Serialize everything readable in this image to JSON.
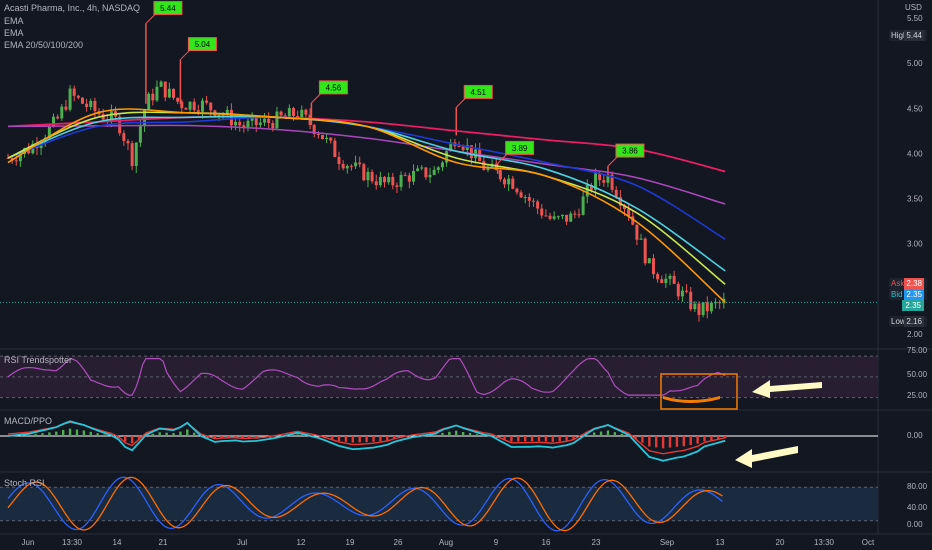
{
  "header": {
    "symbol": "Acasti Pharma, Inc., 4h, NASDAQ",
    "ind1": "EMA",
    "ind2": "EMA",
    "ind3": "EMA 20/50/100/200"
  },
  "currency": "USD",
  "price_axis_labels": [
    "5.50",
    "5.00",
    "4.50",
    "4.00",
    "3.50",
    "3.00",
    "2.50",
    "2.00"
  ],
  "price_tags": {
    "high": {
      "k": "High",
      "v": "5.44"
    },
    "ask": {
      "k": "Ask",
      "v": "2.38"
    },
    "bid": {
      "k": "Bid",
      "v": "2.35"
    },
    "last": {
      "v": "2.35"
    },
    "low": {
      "k": "Low",
      "v": "2.16"
    }
  },
  "panes": {
    "rsi": {
      "title": "RSI Trendspotter",
      "ticks": [
        "75.00",
        "50.00",
        "25.00"
      ]
    },
    "macd": {
      "title": "MACD/PPO",
      "ticks": [
        "0.00"
      ]
    },
    "stoch": {
      "title": "Stoch RSI",
      "ticks": [
        "80.00",
        "40.00",
        "0.00"
      ]
    }
  },
  "time_axis_labels": [
    "Jun",
    "13:30",
    "14",
    "21",
    "Jul",
    "12",
    "19",
    "26",
    "Aug",
    "9",
    "16",
    "23",
    "Sep",
    "13",
    "20",
    "13:30",
    "Oct"
  ],
  "chart_data": {
    "type": "candlestick",
    "title": "Acasti Pharma, Inc., 4h, NASDAQ",
    "y_axis_range": [
      1.9,
      5.7
    ],
    "last_price": 2.35,
    "high": 5.44,
    "low": 2.16,
    "annotations": [
      {
        "label": "5.44",
        "date": "Jun 21"
      },
      {
        "label": "5.04",
        "date": "Jun 26"
      },
      {
        "label": "4.56",
        "date": "Jul 15"
      },
      {
        "label": "4.51",
        "date": "Aug 5"
      },
      {
        "label": "3.89",
        "date": "Aug 11"
      },
      {
        "label": "3.86",
        "date": "Aug 27"
      }
    ],
    "price_path": [
      {
        "date": "Jun 1",
        "price": 3.95
      },
      {
        "date": "Jun 4",
        "price": 4.05
      },
      {
        "date": "Jun 8",
        "price": 4.35
      },
      {
        "date": "Jun 10",
        "price": 4.65
      },
      {
        "date": "Jun 14",
        "price": 4.45
      },
      {
        "date": "Jun 17",
        "price": 4.35
      },
      {
        "date": "Jun 19",
        "price": 3.95
      },
      {
        "date": "Jun 21",
        "price": 4.55
      },
      {
        "date": "Jun 23",
        "price": 4.75
      },
      {
        "date": "Jun 26",
        "price": 4.55
      },
      {
        "date": "Jun 29",
        "price": 4.55
      },
      {
        "date": "Jul 2",
        "price": 4.45
      },
      {
        "date": "Jul 5",
        "price": 4.3
      },
      {
        "date": "Jul 9",
        "price": 4.35
      },
      {
        "date": "Jul 13",
        "price": 4.45
      },
      {
        "date": "Jul 16",
        "price": 4.25
      },
      {
        "date": "Jul 19",
        "price": 3.95
      },
      {
        "date": "Jul 22",
        "price": 3.8
      },
      {
        "date": "Jul 26",
        "price": 3.65
      },
      {
        "date": "Jul 29",
        "price": 3.75
      },
      {
        "date": "Aug 2",
        "price": 3.8
      },
      {
        "date": "Aug 5",
        "price": 4.2
      },
      {
        "date": "Aug 9",
        "price": 3.85
      },
      {
        "date": "Aug 13",
        "price": 3.7
      },
      {
        "date": "Aug 16",
        "price": 3.45
      },
      {
        "date": "Aug 19",
        "price": 3.25
      },
      {
        "date": "Aug 22",
        "price": 3.3
      },
      {
        "date": "Aug 25",
        "price": 3.7
      },
      {
        "date": "Aug 27",
        "price": 3.75
      },
      {
        "date": "Aug 30",
        "price": 3.35
      },
      {
        "date": "Sep 2",
        "price": 2.75
      },
      {
        "date": "Sep 6",
        "price": 2.5
      },
      {
        "date": "Sep 9",
        "price": 2.25
      },
      {
        "date": "Sep 13",
        "price": 2.35
      }
    ],
    "series": [
      {
        "values": [
          3.9,
          4.45,
          4.45,
          4.4,
          4.3,
          3.9,
          3.75,
          3.25,
          2.35
        ]
      },
      {
        "values": [
          3.95,
          4.4,
          4.45,
          4.4,
          4.3,
          3.95,
          3.75,
          3.35,
          2.55
        ]
      },
      {
        "values": [
          3.95,
          4.3,
          4.35,
          4.4,
          4.3,
          4.1,
          3.9,
          3.65,
          3.05
        ]
      },
      {
        "values": [
          4.3,
          4.35,
          4.4,
          4.4,
          4.35,
          4.25,
          4.15,
          4.05,
          3.8
        ]
      }
    ],
    "series_colors": [
      "#ff9800",
      "#c8e64c",
      "#4dd0e1",
      "#1e3ad8",
      "#ab47bc",
      "#e91e63"
    ],
    "colors": {
      "up": "#4caf50",
      "down": "#ef5350"
    }
  }
}
